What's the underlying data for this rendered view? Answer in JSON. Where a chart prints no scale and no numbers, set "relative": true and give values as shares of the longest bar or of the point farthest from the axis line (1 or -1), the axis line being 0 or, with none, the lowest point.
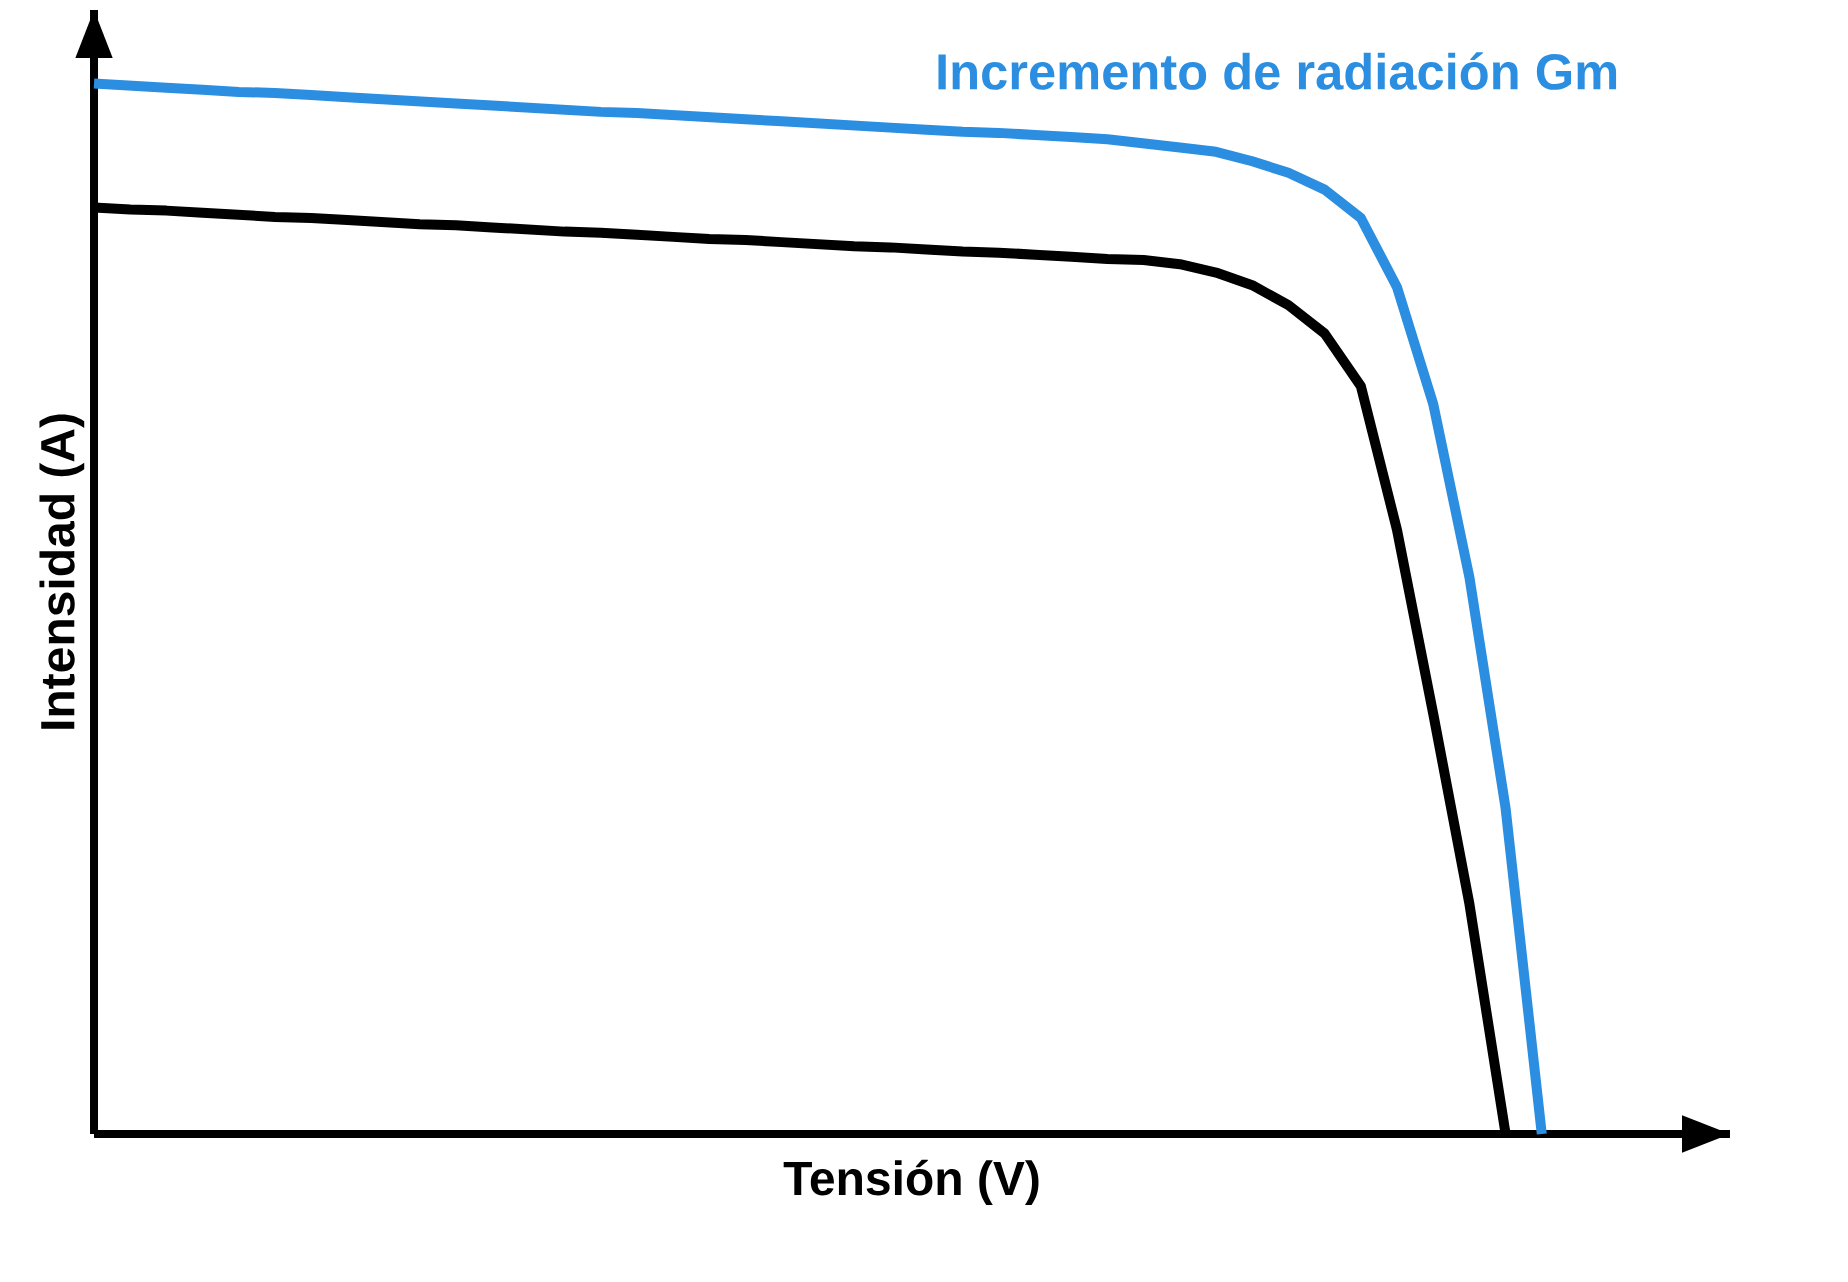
{
  "chart_data": {
    "type": "line",
    "relative": true,
    "xlabel": "Tensión (V)",
    "ylabel": "Intensidad (A)",
    "categories": [
      null,
      null,
      null,
      null,
      null,
      null,
      null,
      null,
      null,
      null,
      null,
      null,
      null,
      null,
      null,
      null,
      null,
      null,
      null,
      null,
      null,
      null,
      null,
      null,
      null,
      null,
      null,
      null,
      null,
      null,
      null,
      null,
      null,
      null,
      null,
      null,
      null,
      null,
      null,
      null,
      null
    ],
    "series": [
      {
        "name": "Incremento de radiación Gm",
        "color": "#2b8ee0",
        "values": [
          1.0,
          0.998,
          0.996,
          0.994,
          0.992,
          0.991,
          0.989,
          0.987,
          0.985,
          0.983,
          0.981,
          0.979,
          0.977,
          0.975,
          0.973,
          0.972,
          0.97,
          0.968,
          0.966,
          0.964,
          0.962,
          0.96,
          0.958,
          0.956,
          0.954,
          0.953,
          0.951,
          0.949,
          0.947,
          0.943,
          0.939,
          0.935,
          0.926,
          0.915,
          0.899,
          0.872,
          0.806,
          0.695,
          0.53,
          0.31,
          0
        ]
      },
      {
        "color": "#000000",
        "values": [
          0.882,
          0.88,
          0.879,
          0.877,
          0.875,
          0.873,
          0.872,
          0.87,
          0.868,
          0.866,
          0.865,
          0.863,
          0.861,
          0.859,
          0.858,
          0.856,
          0.854,
          0.852,
          0.851,
          0.849,
          0.847,
          0.845,
          0.844,
          0.842,
          0.84,
          0.839,
          0.837,
          0.835,
          0.833,
          0.832,
          0.828,
          0.82,
          0.808,
          0.789,
          0.762,
          0.712,
          0.575,
          0.4,
          0.219,
          0,
          null
        ]
      }
    ]
  }
}
